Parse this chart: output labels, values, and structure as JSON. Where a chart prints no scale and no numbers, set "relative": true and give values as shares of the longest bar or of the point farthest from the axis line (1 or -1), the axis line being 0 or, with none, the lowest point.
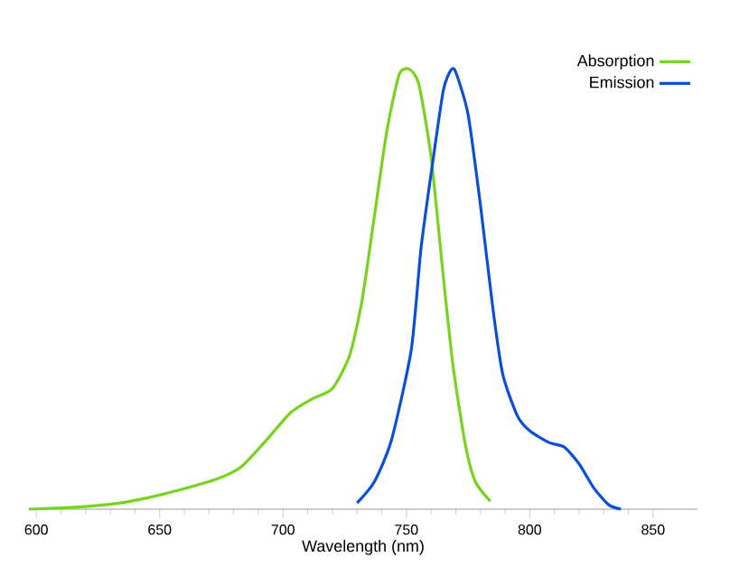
{
  "chart_data": {
    "type": "line",
    "relative": true,
    "xlabel": "Wavelength (nm)",
    "xlim": [
      597,
      868
    ],
    "xticks": [
      600,
      650,
      700,
      750,
      800,
      850
    ],
    "legend": "top right",
    "series": [
      {
        "name": "Absorption",
        "color": "#76d41c",
        "x": [
          597,
          610,
          622,
          634,
          646,
          659,
          673,
          683,
          693,
          703,
          712,
          720,
          727,
          732,
          737,
          742,
          747,
          751,
          755,
          760,
          765,
          769,
          774,
          778,
          784
        ],
        "values": [
          0,
          0.003,
          0.007,
          0.014,
          0.027,
          0.045,
          0.068,
          0.096,
          0.155,
          0.219,
          0.251,
          0.274,
          0.349,
          0.473,
          0.664,
          0.856,
          0.986,
          1,
          0.966,
          0.801,
          0.527,
          0.322,
          0.144,
          0.062,
          0.018
        ]
      },
      {
        "name": "Emission",
        "color": "#0a4fd8",
        "x": [
          730,
          737,
          744,
          752,
          756,
          761,
          765,
          768,
          770,
          775,
          780,
          785,
          789,
          795,
          800,
          808,
          814,
          820,
          826,
          832,
          837
        ],
        "values": [
          0.014,
          0.062,
          0.158,
          0.363,
          0.596,
          0.801,
          0.952,
          0.997,
          0.993,
          0.897,
          0.692,
          0.459,
          0.308,
          0.212,
          0.178,
          0.151,
          0.141,
          0.103,
          0.048,
          0.01,
          0
        ]
      }
    ]
  }
}
